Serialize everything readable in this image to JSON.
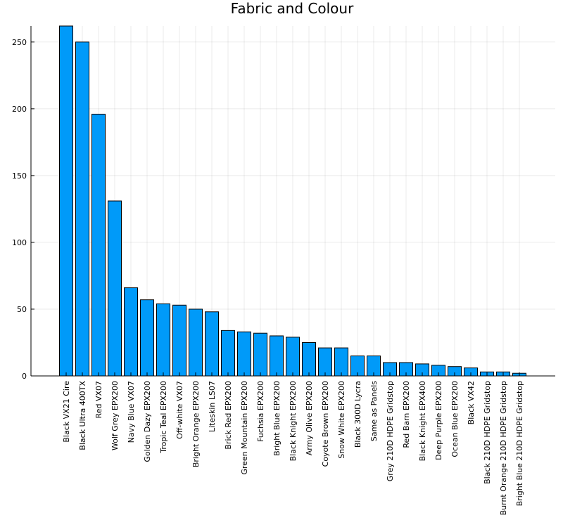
{
  "chart_data": {
    "type": "bar",
    "title": "Fabric and Colour",
    "xlabel": "",
    "ylabel": "",
    "ylim": [
      0,
      262
    ],
    "yticks": [
      0,
      50,
      100,
      150,
      200,
      250
    ],
    "grid": true,
    "legend": "none",
    "bar_color": "#009af9",
    "categories": [
      "Black VX21 Cire",
      "Black Ultra 400TX",
      "Red VX07",
      "Wolf Grey EPX200",
      "Navy Blue VX07",
      "Golden Dazy EPX200",
      "Tropic Teal EPX200",
      "Off-white VX07",
      "Bright Orange EPX200",
      "Liteskin LS07",
      "Brick Red EPX200",
      "Green Mountain EPX200",
      "Fuchsia EPX200",
      "Bright Blue EPX200",
      "Black Knight EPX200",
      "Army Olive EPX200",
      "Coyote Brown EPX200",
      "Snow White EPX200",
      "Black 300D Lycra",
      "Same as Panels",
      "Grey 210D HDPE Gridstop",
      "Red Barn EPX200",
      "Black Knight EPX400",
      "Deep Purple EPX200",
      "Ocean Blue EPX200",
      "Black VX42",
      "Black 210D HDPE Gridstop",
      "Burnt Orange 210D HDPE Gridstop",
      "Bright Blue 210D HDPE Gridstop"
    ],
    "values": [
      262,
      250,
      196,
      131,
      66,
      57,
      54,
      53,
      50,
      48,
      34,
      33,
      32,
      30,
      29,
      25,
      21,
      21,
      15,
      15,
      10,
      10,
      9,
      8,
      7,
      6,
      3,
      3,
      2
    ]
  }
}
